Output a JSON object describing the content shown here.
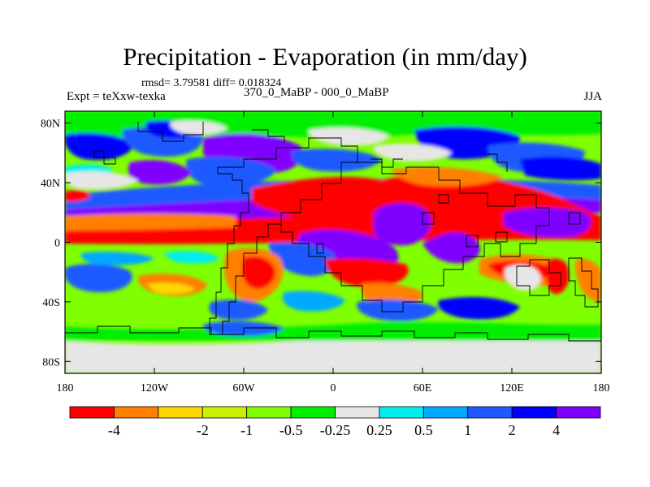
{
  "title": "Precipitation - Evaporation (in mm/day)",
  "stats": "rmsd= 3.79581 diff= 0.018324",
  "experiment": "Expt = teXxw-texka",
  "difference_label": "370_0_MaBP - 000_0_MaBP",
  "season": "JJA",
  "lat_ticks": [
    {
      "lat": 80,
      "label": "80N"
    },
    {
      "lat": 40,
      "label": "40N"
    },
    {
      "lat": 0,
      "label": "0"
    },
    {
      "lat": -40,
      "label": "40S"
    },
    {
      "lat": -80,
      "label": "80S"
    }
  ],
  "lon_ticks": [
    {
      "lon": -180,
      "label": "180"
    },
    {
      "lon": -120,
      "label": "120W"
    },
    {
      "lon": -60,
      "label": "60W"
    },
    {
      "lon": 0,
      "label": "0"
    },
    {
      "lon": 60,
      "label": "60E"
    },
    {
      "lon": 120,
      "label": "120E"
    },
    {
      "lon": 180,
      "label": "180"
    }
  ],
  "colorbar": {
    "colors": [
      "#ff0000",
      "#ff7f00",
      "#ffd700",
      "#ccee00",
      "#7fff00",
      "#00ee00",
      "#e6e6e6",
      "#00eeee",
      "#00aaff",
      "#1e5aff",
      "#0000ff",
      "#7f00ff"
    ],
    "labels": [
      {
        "after": 1,
        "text": "-4"
      },
      {
        "after": 3,
        "text": "-2"
      },
      {
        "after": 4,
        "text": "-1"
      },
      {
        "after": 5,
        "text": "-0.5"
      },
      {
        "after": 6,
        "text": "-0.25"
      },
      {
        "after": 7,
        "text": "0.25"
      },
      {
        "after": 8,
        "text": "0.5"
      },
      {
        "after": 9,
        "text": "1"
      },
      {
        "after": 10,
        "text": "2"
      },
      {
        "after": 11,
        "text": "4"
      }
    ]
  },
  "field_colors": {
    "background": "#7fff00",
    "red": "#ff0000",
    "orange": "#ff7f00",
    "yellow": "#ffd700",
    "green": "#00ee00",
    "grey": "#e6e6e6",
    "cyan": "#00eeee",
    "lightblue": "#00aaff",
    "blue": "#1e5aff",
    "darkblue": "#0000ff",
    "purple": "#7f00ff"
  }
}
